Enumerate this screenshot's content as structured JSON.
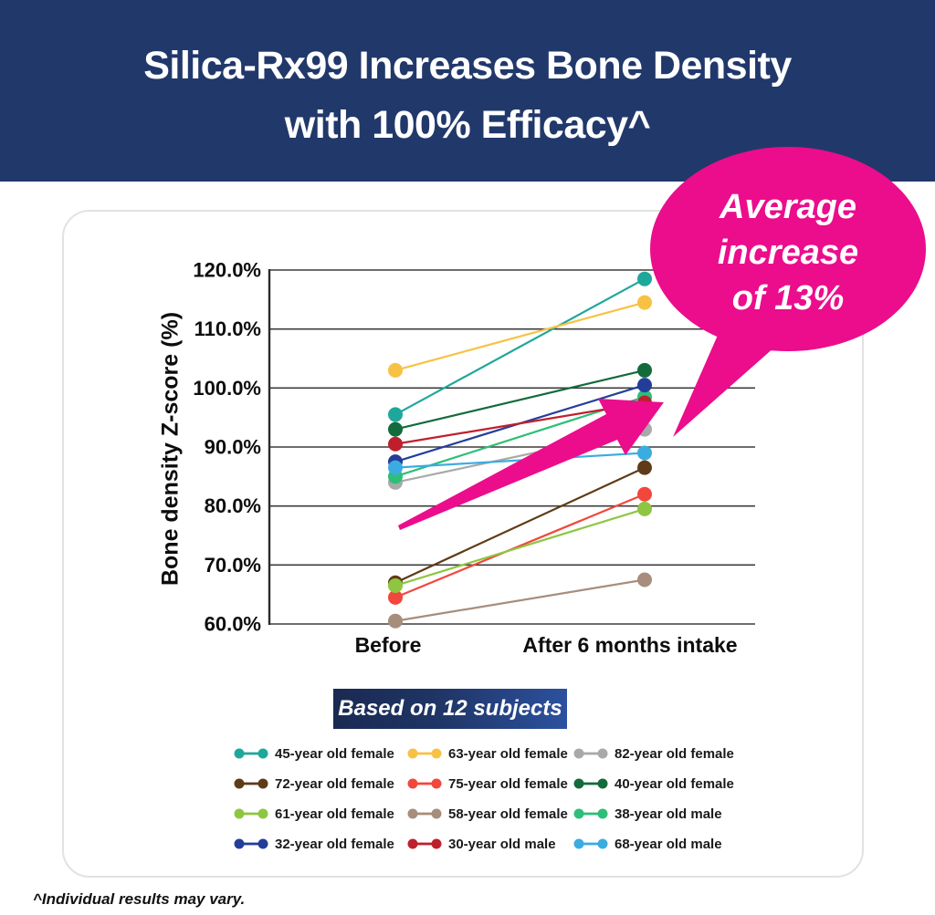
{
  "page": {
    "title": "Silica-Rx99 Increases Bone Density\nwith 100% Efficacy^",
    "footnote": "^Individual results may vary."
  },
  "callout": {
    "text": "Average\nincrease\nof 13%"
  },
  "subjects_note": "Based on 12 subjects",
  "colors": {
    "header_bg": "#21386B",
    "accent_pink": "#EB0D8C",
    "note_box_bg": "#1A2A52",
    "grid_line": "#3d3d3d"
  },
  "chart_data": {
    "type": "line",
    "subtype": "slope",
    "title": "Silica-Rx99 Increases Bone Density with 100% Efficacy^",
    "categories": [
      "Before",
      "After 6 months intake"
    ],
    "xlabel": "",
    "ylabel": "Bone density Z-score (%)",
    "ylim": [
      60,
      120
    ],
    "ytick_step": 10,
    "ytick_labels": [
      "60.0%",
      "70.0%",
      "80.0%",
      "90.0%",
      "100.0%",
      "110.0%",
      "120.0%"
    ],
    "grid": true,
    "legend_position": "bottom",
    "annotation": "Average increase of 13%",
    "series": [
      {
        "name": "45-year old female",
        "color": "#20A79B",
        "values": [
          95.5,
          118.5
        ]
      },
      {
        "name": "63-year old female",
        "color": "#F7C244",
        "values": [
          103,
          114.5
        ]
      },
      {
        "name": "82-year old female",
        "color": "#A9A9A9",
        "values": [
          84,
          93
        ]
      },
      {
        "name": "72-year old female",
        "color": "#5F3B17",
        "values": [
          67,
          86.5
        ]
      },
      {
        "name": "75-year old female",
        "color": "#F2473C",
        "values": [
          64.5,
          82
        ]
      },
      {
        "name": "40-year old female",
        "color": "#136B3B",
        "values": [
          93,
          103
        ]
      },
      {
        "name": "61-year old female",
        "color": "#8EC641",
        "values": [
          66.5,
          79.5
        ]
      },
      {
        "name": "58-year old female",
        "color": "#A78D7C",
        "values": [
          60.5,
          67.5
        ]
      },
      {
        "name": "38-year old male",
        "color": "#2EBE77",
        "values": [
          85,
          98.5
        ]
      },
      {
        "name": "32-year old female",
        "color": "#233E9A",
        "values": [
          87.5,
          100.5
        ]
      },
      {
        "name": "30-year old male",
        "color": "#BF1F2C",
        "values": [
          90.5,
          97.5
        ]
      },
      {
        "name": "68-year old male",
        "color": "#3BACE0",
        "values": [
          86.5,
          89
        ]
      }
    ]
  }
}
